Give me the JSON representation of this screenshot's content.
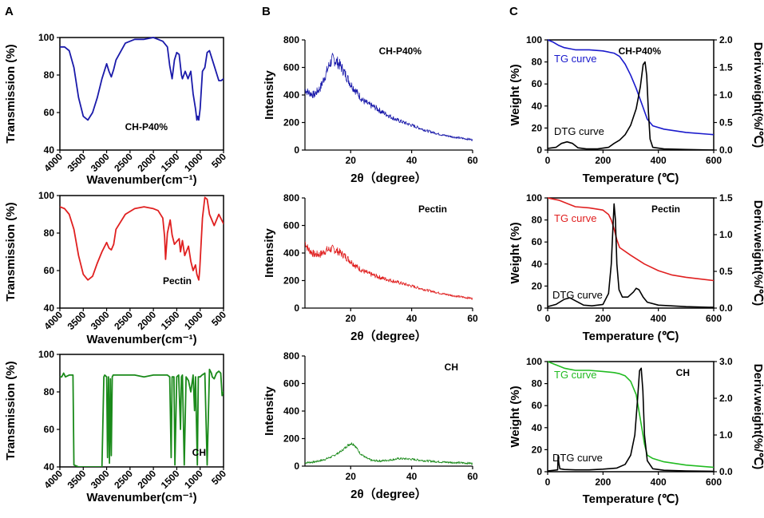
{
  "panels": {
    "A": {
      "letter": "A"
    },
    "B": {
      "letter": "B"
    },
    "C": {
      "letter": "C"
    }
  },
  "chart_data": [
    {
      "id": "ftir-chp40",
      "type": "line",
      "panel": "A",
      "series_label": "CH-P40%",
      "color": "#1a1aaa",
      "xlabel": "Wavenumber(cm⁻¹)",
      "ylabel": "Transmission (%)",
      "xlim": [
        4000,
        500
      ],
      "ylim": [
        40,
        100
      ],
      "xticks": [
        "4000",
        "3500",
        "3000",
        "2500",
        "2000",
        "1500",
        "1000",
        "500"
      ],
      "yticks": [
        "40",
        "60",
        "80",
        "100"
      ],
      "series": [
        {
          "name": "CH-P40%",
          "x": [
            4000,
            3900,
            3800,
            3700,
            3600,
            3500,
            3400,
            3300,
            3200,
            3100,
            3000,
            2950,
            2900,
            2850,
            2800,
            2600,
            2400,
            2200,
            2000,
            1900,
            1800,
            1700,
            1650,
            1600,
            1550,
            1500,
            1450,
            1400,
            1380,
            1320,
            1260,
            1200,
            1150,
            1100,
            1070,
            1050,
            1030,
            1000,
            950,
            900,
            850,
            800,
            700,
            600,
            550,
            500
          ],
          "y": [
            95,
            95,
            93,
            84,
            68,
            58,
            56,
            60,
            68,
            78,
            86,
            82,
            79,
            83,
            88,
            97,
            99,
            99,
            100,
            99,
            98,
            95,
            85,
            78,
            88,
            92,
            91,
            80,
            78,
            82,
            78,
            82,
            70,
            62,
            56,
            58,
            56,
            62,
            82,
            84,
            92,
            93,
            85,
            77,
            77,
            78
          ]
        }
      ]
    },
    {
      "id": "ftir-pectin",
      "type": "line",
      "panel": "A",
      "series_label": "Pectin",
      "color": "#e02020",
      "xlabel": "Wavenumber(cm⁻¹)",
      "ylabel": "Transmission (%)",
      "xlim": [
        4000,
        500
      ],
      "ylim": [
        40,
        100
      ],
      "xticks": [
        "4000",
        "3500",
        "3000",
        "2500",
        "2000",
        "1500",
        "1000",
        "500"
      ],
      "yticks": [
        "40",
        "60",
        "80",
        "100"
      ],
      "series": [
        {
          "name": "Pectin",
          "x": [
            4000,
            3900,
            3800,
            3700,
            3600,
            3500,
            3400,
            3300,
            3200,
            3100,
            3000,
            2950,
            2900,
            2850,
            2800,
            2600,
            2400,
            2200,
            2000,
            1900,
            1800,
            1760,
            1740,
            1700,
            1640,
            1600,
            1550,
            1450,
            1420,
            1380,
            1330,
            1250,
            1200,
            1150,
            1100,
            1070,
            1030,
            1010,
            950,
            900,
            850,
            800,
            700,
            600,
            500
          ],
          "y": [
            94,
            93,
            90,
            82,
            68,
            58,
            55,
            57,
            64,
            70,
            75,
            72,
            71,
            74,
            82,
            90,
            93,
            94,
            93,
            92,
            88,
            78,
            66,
            80,
            87,
            79,
            74,
            77,
            70,
            76,
            68,
            73,
            65,
            60,
            63,
            58,
            55,
            60,
            88,
            99,
            98,
            90,
            84,
            90,
            85
          ]
        }
      ]
    },
    {
      "id": "ftir-ch",
      "type": "line",
      "panel": "A",
      "series_label": "CH",
      "color": "#1a8a1a",
      "xlabel": "Wavenumber(cm⁻¹)",
      "ylabel": "Transmission (%)",
      "xlim": [
        4000,
        500
      ],
      "ylim": [
        40,
        100
      ],
      "xticks": [
        "4000",
        "3500",
        "3000",
        "2500",
        "2000",
        "1500",
        "1000",
        "500"
      ],
      "yticks": [
        "40",
        "60",
        "80",
        "100"
      ],
      "series": [
        {
          "name": "CH",
          "x": [
            4000,
            3960,
            3920,
            3880,
            3800,
            3720,
            3700,
            3600,
            3400,
            3200,
            3100,
            3060,
            3040,
            3000,
            2980,
            2960,
            2940,
            2920,
            2900,
            2880,
            2860,
            2800,
            2600,
            2400,
            2200,
            2000,
            1800,
            1700,
            1650,
            1620,
            1600,
            1560,
            1540,
            1500,
            1460,
            1420,
            1400,
            1380,
            1340,
            1300,
            1250,
            1200,
            1150,
            1120,
            1100,
            1060,
            1040,
            1000,
            960,
            900,
            850,
            800,
            760,
            740,
            700,
            650,
            600,
            560,
            530,
            500
          ],
          "y": [
            88,
            88,
            90,
            88,
            89,
            89,
            41,
            40,
            40,
            40,
            40,
            88,
            89,
            88,
            45,
            88,
            42,
            87,
            46,
            88,
            89,
            89,
            89,
            89,
            88,
            89,
            89,
            89,
            88,
            45,
            88,
            88,
            41,
            88,
            89,
            60,
            88,
            89,
            41,
            88,
            86,
            80,
            89,
            70,
            88,
            41,
            88,
            88,
            89,
            90,
            41,
            92,
            90,
            88,
            87,
            90,
            91,
            90,
            78,
            80
          ]
        }
      ]
    },
    {
      "id": "xrd-chp40",
      "type": "line",
      "panel": "B",
      "series_label": "CH-P40%",
      "color": "#1a1aaa",
      "xlabel": "2θ（degree）",
      "ylabel": "Intensity",
      "xlim": [
        5,
        60
      ],
      "ylim": [
        0,
        800
      ],
      "xticks": [
        "20",
        "40",
        "60"
      ],
      "xtick_values": [
        20,
        40,
        60
      ],
      "yticks": [
        "0",
        "200",
        "400",
        "600",
        "800"
      ],
      "series": [
        {
          "name": "CH-P40%",
          "x": [
            5,
            6,
            8,
            10,
            12,
            13,
            14,
            15,
            16,
            17,
            18,
            20,
            22,
            24,
            26,
            28,
            30,
            35,
            40,
            45,
            50,
            55,
            60
          ],
          "y": [
            440,
            420,
            400,
            450,
            560,
            620,
            660,
            650,
            630,
            600,
            560,
            480,
            420,
            360,
            330,
            310,
            280,
            220,
            180,
            140,
            110,
            90,
            75
          ]
        }
      ]
    },
    {
      "id": "xrd-pectin",
      "type": "line",
      "panel": "B",
      "series_label": "Pectin",
      "color": "#e02020",
      "xlabel": "2θ（degree）",
      "ylabel": "Intensity",
      "xlim": [
        5,
        60
      ],
      "ylim": [
        0,
        800
      ],
      "xticks": [
        "20",
        "40",
        "60"
      ],
      "xtick_values": [
        20,
        40,
        60
      ],
      "yticks": [
        "0",
        "200",
        "400",
        "600",
        "800"
      ],
      "series": [
        {
          "name": "Pectin",
          "x": [
            5,
            6,
            8,
            10,
            12,
            14,
            16,
            18,
            20,
            22,
            24,
            26,
            28,
            30,
            35,
            40,
            45,
            50,
            55,
            60
          ],
          "y": [
            480,
            430,
            390,
            390,
            420,
            430,
            410,
            380,
            340,
            300,
            270,
            250,
            235,
            220,
            190,
            160,
            130,
            105,
            85,
            70
          ]
        }
      ]
    },
    {
      "id": "xrd-ch",
      "type": "line",
      "panel": "B",
      "series_label": "CH",
      "color": "#1a8a1a",
      "xlabel": "2θ（degree）",
      "ylabel": "Intensity",
      "xlim": [
        5,
        60
      ],
      "ylim": [
        0,
        800
      ],
      "xticks": [
        "20",
        "40",
        "60"
      ],
      "xtick_values": [
        20,
        40,
        60
      ],
      "yticks": [
        "0",
        "200",
        "400",
        "600",
        "800"
      ],
      "series": [
        {
          "name": "CH",
          "x": [
            5,
            8,
            11,
            14,
            17,
            19,
            20,
            21,
            22,
            23,
            25,
            27,
            30,
            33,
            36,
            39,
            42,
            45,
            50,
            55,
            60
          ],
          "y": [
            25,
            30,
            45,
            70,
            110,
            150,
            165,
            160,
            130,
            95,
            60,
            40,
            38,
            45,
            55,
            52,
            45,
            38,
            30,
            25,
            20
          ]
        }
      ]
    },
    {
      "id": "tga-chp40",
      "type": "line",
      "panel": "C",
      "series_label": "CH-P40%",
      "xlabel": "Temperature (℃)",
      "ylabel": "Weight (%)",
      "y2label": "Deriv.weight(%/℃)",
      "xlim": [
        0,
        600
      ],
      "ylim": [
        0,
        100
      ],
      "y2lim": [
        0,
        2.0
      ],
      "xticks": [
        "0",
        "200",
        "400",
        "600"
      ],
      "xtick_values": [
        0,
        200,
        400,
        600
      ],
      "yticks": [
        "0",
        "20",
        "40",
        "60",
        "80",
        "100"
      ],
      "y2ticks": [
        "0.0",
        "0.5",
        "1.0",
        "1.5",
        "2.0"
      ],
      "y2tick_values": [
        0,
        0.5,
        1.0,
        1.5,
        2.0
      ],
      "tg_label": "TG curve",
      "dtg_label": "DTG curve",
      "tg_color": "#1a1acc",
      "dtg_color": "#000000",
      "tg": {
        "x": [
          0,
          20,
          40,
          60,
          80,
          100,
          150,
          200,
          240,
          260,
          280,
          300,
          320,
          340,
          360,
          380,
          420,
          500,
          600
        ],
        "y": [
          100,
          98,
          95,
          93,
          92,
          91,
          91,
          90,
          88,
          85,
          78,
          68,
          56,
          42,
          28,
          22,
          19,
          16,
          14
        ]
      },
      "dtg": {
        "x": [
          0,
          30,
          50,
          70,
          90,
          110,
          140,
          180,
          220,
          240,
          260,
          280,
          300,
          320,
          335,
          345,
          352,
          358,
          364,
          370,
          380,
          420,
          500,
          600
        ],
        "y": [
          0.03,
          0.05,
          0.12,
          0.15,
          0.12,
          0.04,
          0.02,
          0.02,
          0.05,
          0.12,
          0.18,
          0.28,
          0.45,
          0.75,
          1.15,
          1.55,
          1.6,
          1.35,
          0.7,
          0.2,
          0.05,
          0.02,
          0.01,
          0.0
        ]
      }
    },
    {
      "id": "tga-pectin",
      "type": "line",
      "panel": "C",
      "series_label": "Pectin",
      "xlabel": "Temperature (℃)",
      "ylabel": "Weight (%)",
      "y2label": "Deriv.weight(%/℃)",
      "xlim": [
        0,
        600
      ],
      "ylim": [
        0,
        100
      ],
      "y2lim": [
        0,
        1.5
      ],
      "xticks": [
        "0",
        "200",
        "400",
        "600"
      ],
      "xtick_values": [
        0,
        200,
        400,
        600
      ],
      "yticks": [
        "0",
        "20",
        "40",
        "60",
        "80",
        "100"
      ],
      "y2ticks": [
        "0.0",
        "0.5",
        "1.0",
        "1.5"
      ],
      "y2tick_values": [
        0,
        0.5,
        1.0,
        1.5
      ],
      "tg_label": "TG curve",
      "dtg_label": "DTG curve",
      "tg_color": "#e02020",
      "dtg_color": "#000000",
      "tg": {
        "x": [
          0,
          40,
          60,
          80,
          100,
          150,
          200,
          220,
          230,
          240,
          250,
          260,
          300,
          350,
          400,
          450,
          500,
          600
        ],
        "y": [
          100,
          98,
          96,
          94,
          92,
          91,
          89,
          85,
          80,
          72,
          62,
          55,
          48,
          40,
          34,
          30,
          28,
          25
        ]
      },
      "dtg": {
        "x": [
          0,
          30,
          60,
          80,
          100,
          130,
          160,
          200,
          220,
          230,
          236,
          240,
          245,
          250,
          258,
          270,
          290,
          310,
          320,
          330,
          345,
          360,
          400,
          500,
          600
        ],
        "y": [
          0.02,
          0.05,
          0.12,
          0.14,
          0.1,
          0.04,
          0.03,
          0.05,
          0.2,
          0.6,
          1.1,
          1.42,
          1.2,
          0.6,
          0.25,
          0.15,
          0.15,
          0.22,
          0.27,
          0.25,
          0.15,
          0.08,
          0.04,
          0.02,
          0.01
        ]
      }
    },
    {
      "id": "tga-ch",
      "type": "line",
      "panel": "C",
      "series_label": "CH",
      "xlabel": "Temperature (℃)",
      "ylabel": "Weight (%)",
      "y2label": "Deriv.weight(%/℃)",
      "xlim": [
        0,
        600
      ],
      "ylim": [
        0,
        100
      ],
      "y2lim": [
        0,
        3.0
      ],
      "xticks": [
        "0",
        "200",
        "400",
        "600"
      ],
      "xtick_values": [
        0,
        200,
        400,
        600
      ],
      "yticks": [
        "0",
        "20",
        "40",
        "60",
        "80",
        "100"
      ],
      "y2ticks": [
        "0.0",
        "1.0",
        "2.0",
        "3.0"
      ],
      "y2tick_values": [
        0,
        1.0,
        2.0,
        3.0
      ],
      "tg_label": "TG curve",
      "dtg_label": "DTG curve",
      "tg_color": "#22bb22",
      "dtg_color": "#000000",
      "tg": {
        "x": [
          0,
          20,
          40,
          60,
          80,
          100,
          150,
          200,
          240,
          260,
          280,
          300,
          320,
          330,
          340,
          350,
          360,
          380,
          420,
          500,
          600
        ],
        "y": [
          100,
          98,
          96,
          94,
          93,
          92,
          92,
          91,
          90,
          89,
          87,
          82,
          70,
          55,
          40,
          25,
          15,
          12,
          9,
          6,
          4
        ]
      },
      "dtg": {
        "x": [
          0,
          36,
          38,
          40,
          44,
          60,
          100,
          150,
          200,
          250,
          280,
          300,
          315,
          325,
          332,
          338,
          344,
          350,
          360,
          380,
          420,
          500,
          600
        ],
        "y": [
          0.02,
          0.05,
          0.45,
          0.25,
          0.08,
          0.06,
          0.05,
          0.05,
          0.07,
          0.1,
          0.2,
          0.45,
          1.0,
          2.0,
          2.75,
          2.82,
          2.2,
          1.0,
          0.3,
          0.08,
          0.04,
          0.02,
          0.01
        ]
      }
    }
  ]
}
